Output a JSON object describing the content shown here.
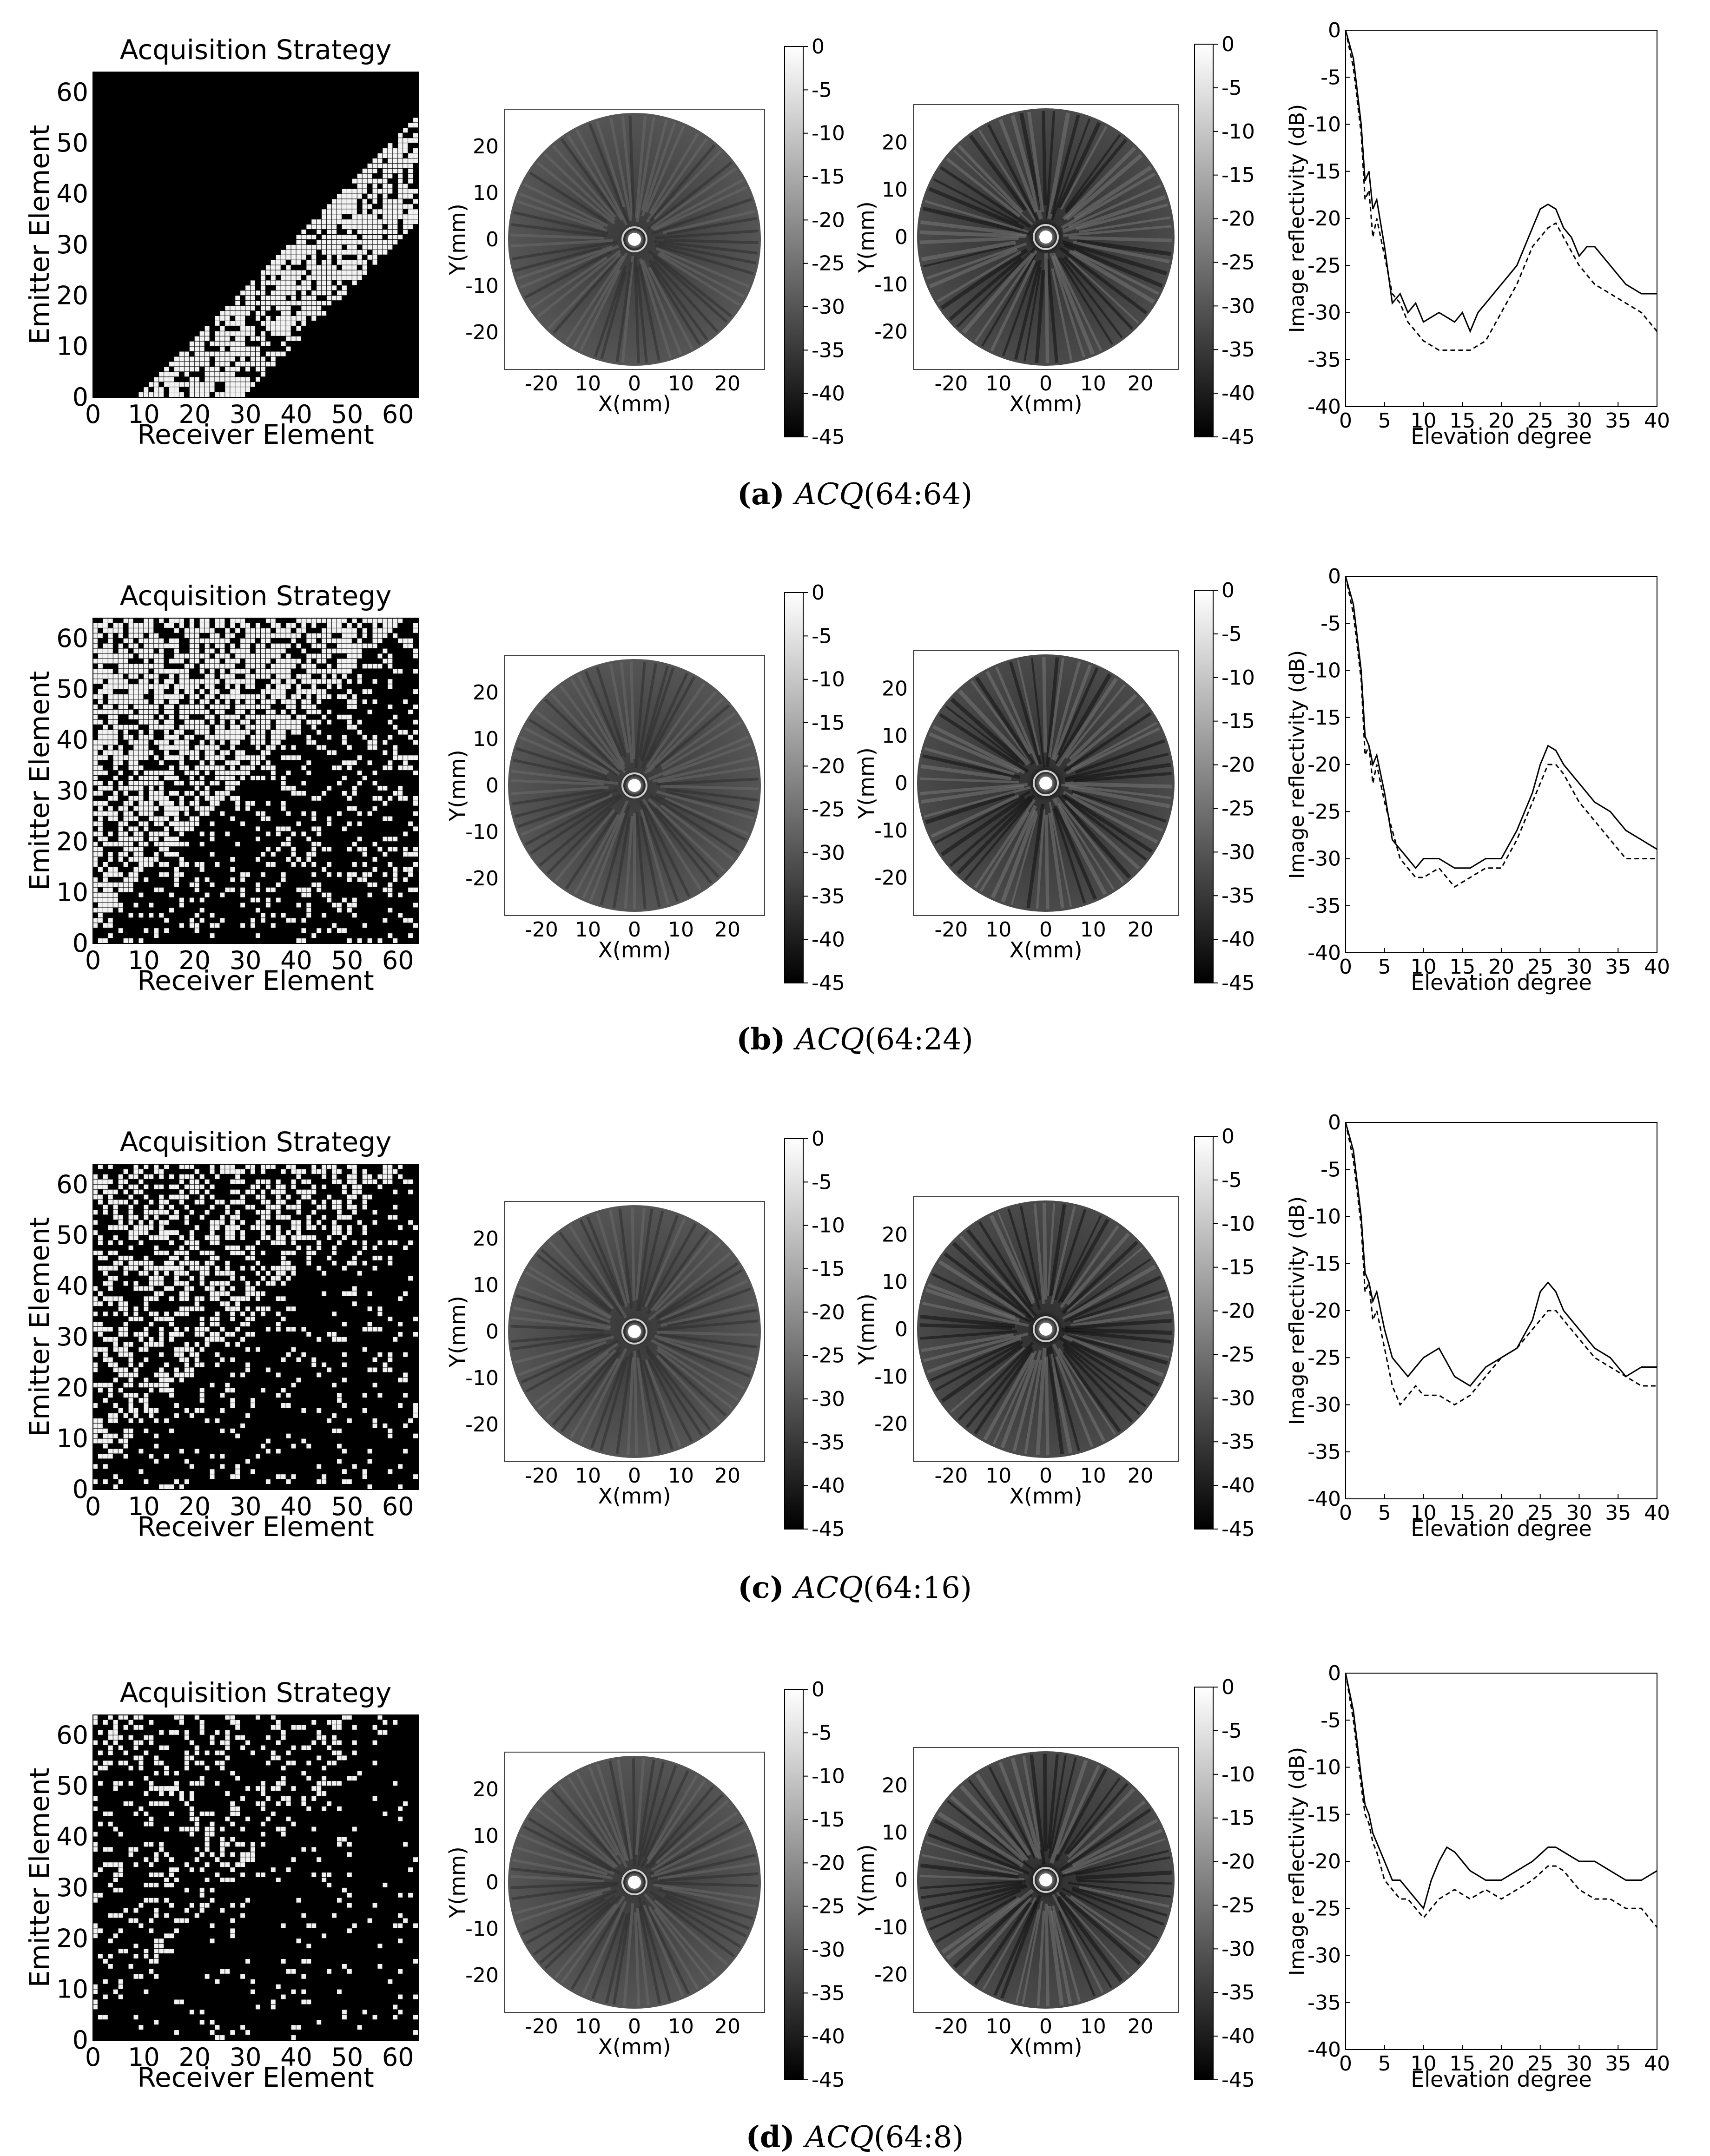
{
  "labels": {
    "acq_title": "Acquisition Strategy",
    "acq_xlabel": "Receiver Element",
    "acq_ylabel": "Emitter Element",
    "img_xlabel": "X(mm)",
    "img_ylabel": "Y(mm)",
    "prof_xlabel": "Elevation degree",
    "prof_ylabel": "Image reflectivity (dB)"
  },
  "colors": {
    "background": "#ffffff",
    "ink": "#000000",
    "acq_on": "#f2f2f2",
    "acq_off": "#000000"
  },
  "acq_ticks": [
    "0",
    "10",
    "20",
    "30",
    "40",
    "50",
    "60"
  ],
  "img_ticks": [
    "-20",
    "10",
    "0",
    "10",
    "20"
  ],
  "img_yticks": [
    "20",
    "10",
    "0",
    "-10",
    "-20"
  ],
  "cbar_ticks": [
    "0",
    "-5",
    "-10",
    "-15",
    "-20",
    "-25",
    "-30",
    "-35",
    "-40",
    "-45"
  ],
  "prof_xticks": [
    "0",
    "5",
    "10",
    "15",
    "20",
    "25",
    "30",
    "35",
    "40"
  ],
  "prof_yticks": [
    "0",
    "-5",
    "-10",
    "-15",
    "-20",
    "-25",
    "-30",
    "-35",
    "-40"
  ],
  "rows": [
    {
      "caption_letter": "(a)",
      "caption_pre": "ACQ",
      "caption_arg": "(64:64)",
      "density": 1.0,
      "band": 8
    },
    {
      "caption_letter": "(b)",
      "caption_pre": "ACQ",
      "caption_arg": "(64:24)",
      "density": 0.38,
      "band": 4
    },
    {
      "caption_letter": "(c)",
      "caption_pre": "ACQ",
      "caption_arg": "(64:16)",
      "density": 0.25,
      "band": 3
    },
    {
      "caption_letter": "(d)",
      "caption_pre": "ACQ",
      "caption_arg": "(64:8)",
      "density": 0.12,
      "band": 2
    }
  ],
  "chart_data": [
    {
      "type": "line",
      "panel": "a",
      "xlabel": "Elevation degree",
      "ylabel": "Image reflectivity (dB)",
      "xlim": [
        0,
        40
      ],
      "ylim": [
        -40,
        0
      ],
      "series": [
        {
          "style": "solid",
          "x": [
            0,
            1,
            2,
            2.5,
            3,
            3.5,
            4,
            5,
            6,
            7,
            8,
            9,
            10,
            12,
            14,
            15,
            16,
            17,
            18,
            20,
            22,
            24,
            25,
            26,
            27,
            28,
            29,
            30,
            31,
            32,
            34,
            36,
            38,
            40
          ],
          "y": [
            0,
            -3,
            -10,
            -16,
            -15,
            -19,
            -18,
            -23,
            -29,
            -28,
            -30,
            -29,
            -31,
            -30,
            -31,
            -30,
            -32,
            -30,
            -29,
            -27,
            -25,
            -21,
            -19,
            -18.5,
            -19,
            -21,
            -22,
            -24,
            -23,
            -23,
            -25,
            -27,
            -28,
            -28
          ]
        },
        {
          "style": "dashed",
          "x": [
            0,
            1,
            2,
            2.5,
            3,
            3.5,
            4,
            5,
            6,
            7,
            8,
            9,
            10,
            12,
            14,
            16,
            18,
            20,
            22,
            24,
            26,
            27,
            28,
            30,
            32,
            34,
            36,
            38,
            40
          ],
          "y": [
            0,
            -4,
            -11,
            -18,
            -17,
            -22,
            -20,
            -24,
            -28,
            -29,
            -31,
            -32,
            -33,
            -34,
            -34,
            -34,
            -33,
            -30,
            -27,
            -23,
            -21,
            -20.5,
            -22,
            -25,
            -27,
            -28,
            -29,
            -30,
            -32
          ]
        }
      ]
    },
    {
      "type": "line",
      "panel": "b",
      "xlabel": "Elevation degree",
      "ylabel": "Image reflectivity (dB)",
      "xlim": [
        0,
        40
      ],
      "ylim": [
        -40,
        0
      ],
      "series": [
        {
          "style": "solid",
          "x": [
            0,
            1,
            2,
            2.5,
            3,
            3.5,
            4,
            5,
            6,
            7,
            8,
            9,
            10,
            12,
            14,
            16,
            18,
            20,
            22,
            24,
            25,
            26,
            27,
            28,
            30,
            32,
            34,
            36,
            38,
            40
          ],
          "y": [
            0,
            -3,
            -10,
            -17,
            -18,
            -20,
            -19,
            -23,
            -28,
            -29,
            -30,
            -31,
            -30,
            -30,
            -31,
            -31,
            -30,
            -30,
            -27,
            -23,
            -20,
            -18,
            -18.5,
            -20,
            -22,
            -24,
            -25,
            -27,
            -28,
            -29
          ]
        },
        {
          "style": "dashed",
          "x": [
            0,
            1,
            2,
            2.5,
            3,
            3.5,
            4,
            5,
            6,
            7,
            8,
            9,
            10,
            12,
            14,
            16,
            18,
            20,
            22,
            24,
            26,
            27,
            28,
            30,
            32,
            34,
            36,
            38,
            40
          ],
          "y": [
            0,
            -4,
            -11,
            -19,
            -18,
            -22,
            -20,
            -24,
            -27,
            -30,
            -31,
            -32,
            -32,
            -31,
            -33,
            -32,
            -31,
            -31,
            -28,
            -24,
            -20,
            -20,
            -21,
            -24,
            -26,
            -28,
            -30,
            -30,
            -30
          ]
        }
      ]
    },
    {
      "type": "line",
      "panel": "c",
      "xlabel": "Elevation degree",
      "ylabel": "Image reflectivity (dB)",
      "xlim": [
        0,
        40
      ],
      "ylim": [
        -40,
        0
      ],
      "series": [
        {
          "style": "solid",
          "x": [
            0,
            1,
            2,
            2.5,
            3,
            3.5,
            4,
            5,
            6,
            7,
            8,
            9,
            10,
            12,
            14,
            16,
            18,
            20,
            22,
            24,
            25,
            26,
            27,
            28,
            30,
            32,
            34,
            36,
            38,
            40
          ],
          "y": [
            0,
            -3,
            -10,
            -16,
            -17,
            -19,
            -18,
            -22,
            -25,
            -26,
            -27,
            -26,
            -25,
            -24,
            -27,
            -28,
            -26,
            -25,
            -24,
            -21,
            -18,
            -17,
            -18,
            -20,
            -22,
            -24,
            -25,
            -27,
            -26,
            -26
          ]
        },
        {
          "style": "dashed",
          "x": [
            0,
            1,
            2,
            2.5,
            3,
            3.5,
            4,
            5,
            6,
            7,
            8,
            9,
            10,
            12,
            14,
            16,
            18,
            20,
            22,
            24,
            26,
            27,
            28,
            30,
            32,
            34,
            36,
            38,
            40
          ],
          "y": [
            0,
            -4,
            -11,
            -18,
            -17,
            -21,
            -20,
            -24,
            -28,
            -30,
            -29,
            -28,
            -29,
            -29,
            -30,
            -29,
            -27,
            -25,
            -24,
            -22,
            -20,
            -20,
            -21,
            -23,
            -25,
            -26,
            -27,
            -28,
            -28
          ]
        }
      ]
    },
    {
      "type": "line",
      "panel": "d",
      "xlabel": "Elevation degree",
      "ylabel": "Image reflectivity (dB)",
      "xlim": [
        0,
        40
      ],
      "ylim": [
        -40,
        0
      ],
      "series": [
        {
          "style": "solid",
          "x": [
            0,
            1,
            2,
            2.5,
            3,
            3.5,
            4,
            5,
            6,
            7,
            8,
            9,
            10,
            11,
            12,
            13,
            14,
            15,
            16,
            18,
            20,
            22,
            24,
            26,
            27,
            28,
            30,
            32,
            34,
            36,
            38,
            40
          ],
          "y": [
            0,
            -4,
            -11,
            -14,
            -15,
            -17,
            -18,
            -20,
            -22,
            -22,
            -23,
            -24,
            -25,
            -22,
            -20,
            -18.5,
            -19,
            -20,
            -21,
            -22,
            -22,
            -21,
            -20,
            -18.5,
            -18.5,
            -19,
            -20,
            -20,
            -21,
            -22,
            -22,
            -21
          ]
        },
        {
          "style": "dashed",
          "x": [
            0,
            1,
            2,
            2.5,
            3,
            3.5,
            4,
            5,
            6,
            7,
            8,
            9,
            10,
            12,
            14,
            16,
            18,
            20,
            22,
            24,
            26,
            27,
            28,
            30,
            32,
            34,
            36,
            38,
            40
          ],
          "y": [
            0,
            -5,
            -12,
            -15,
            -16,
            -18,
            -19,
            -22,
            -23,
            -24,
            -24,
            -25,
            -26,
            -24,
            -23,
            -24,
            -23,
            -24,
            -23,
            -22,
            -20.5,
            -20.5,
            -21,
            -23,
            -24,
            -24,
            -25,
            -25,
            -27
          ]
        }
      ]
    }
  ]
}
